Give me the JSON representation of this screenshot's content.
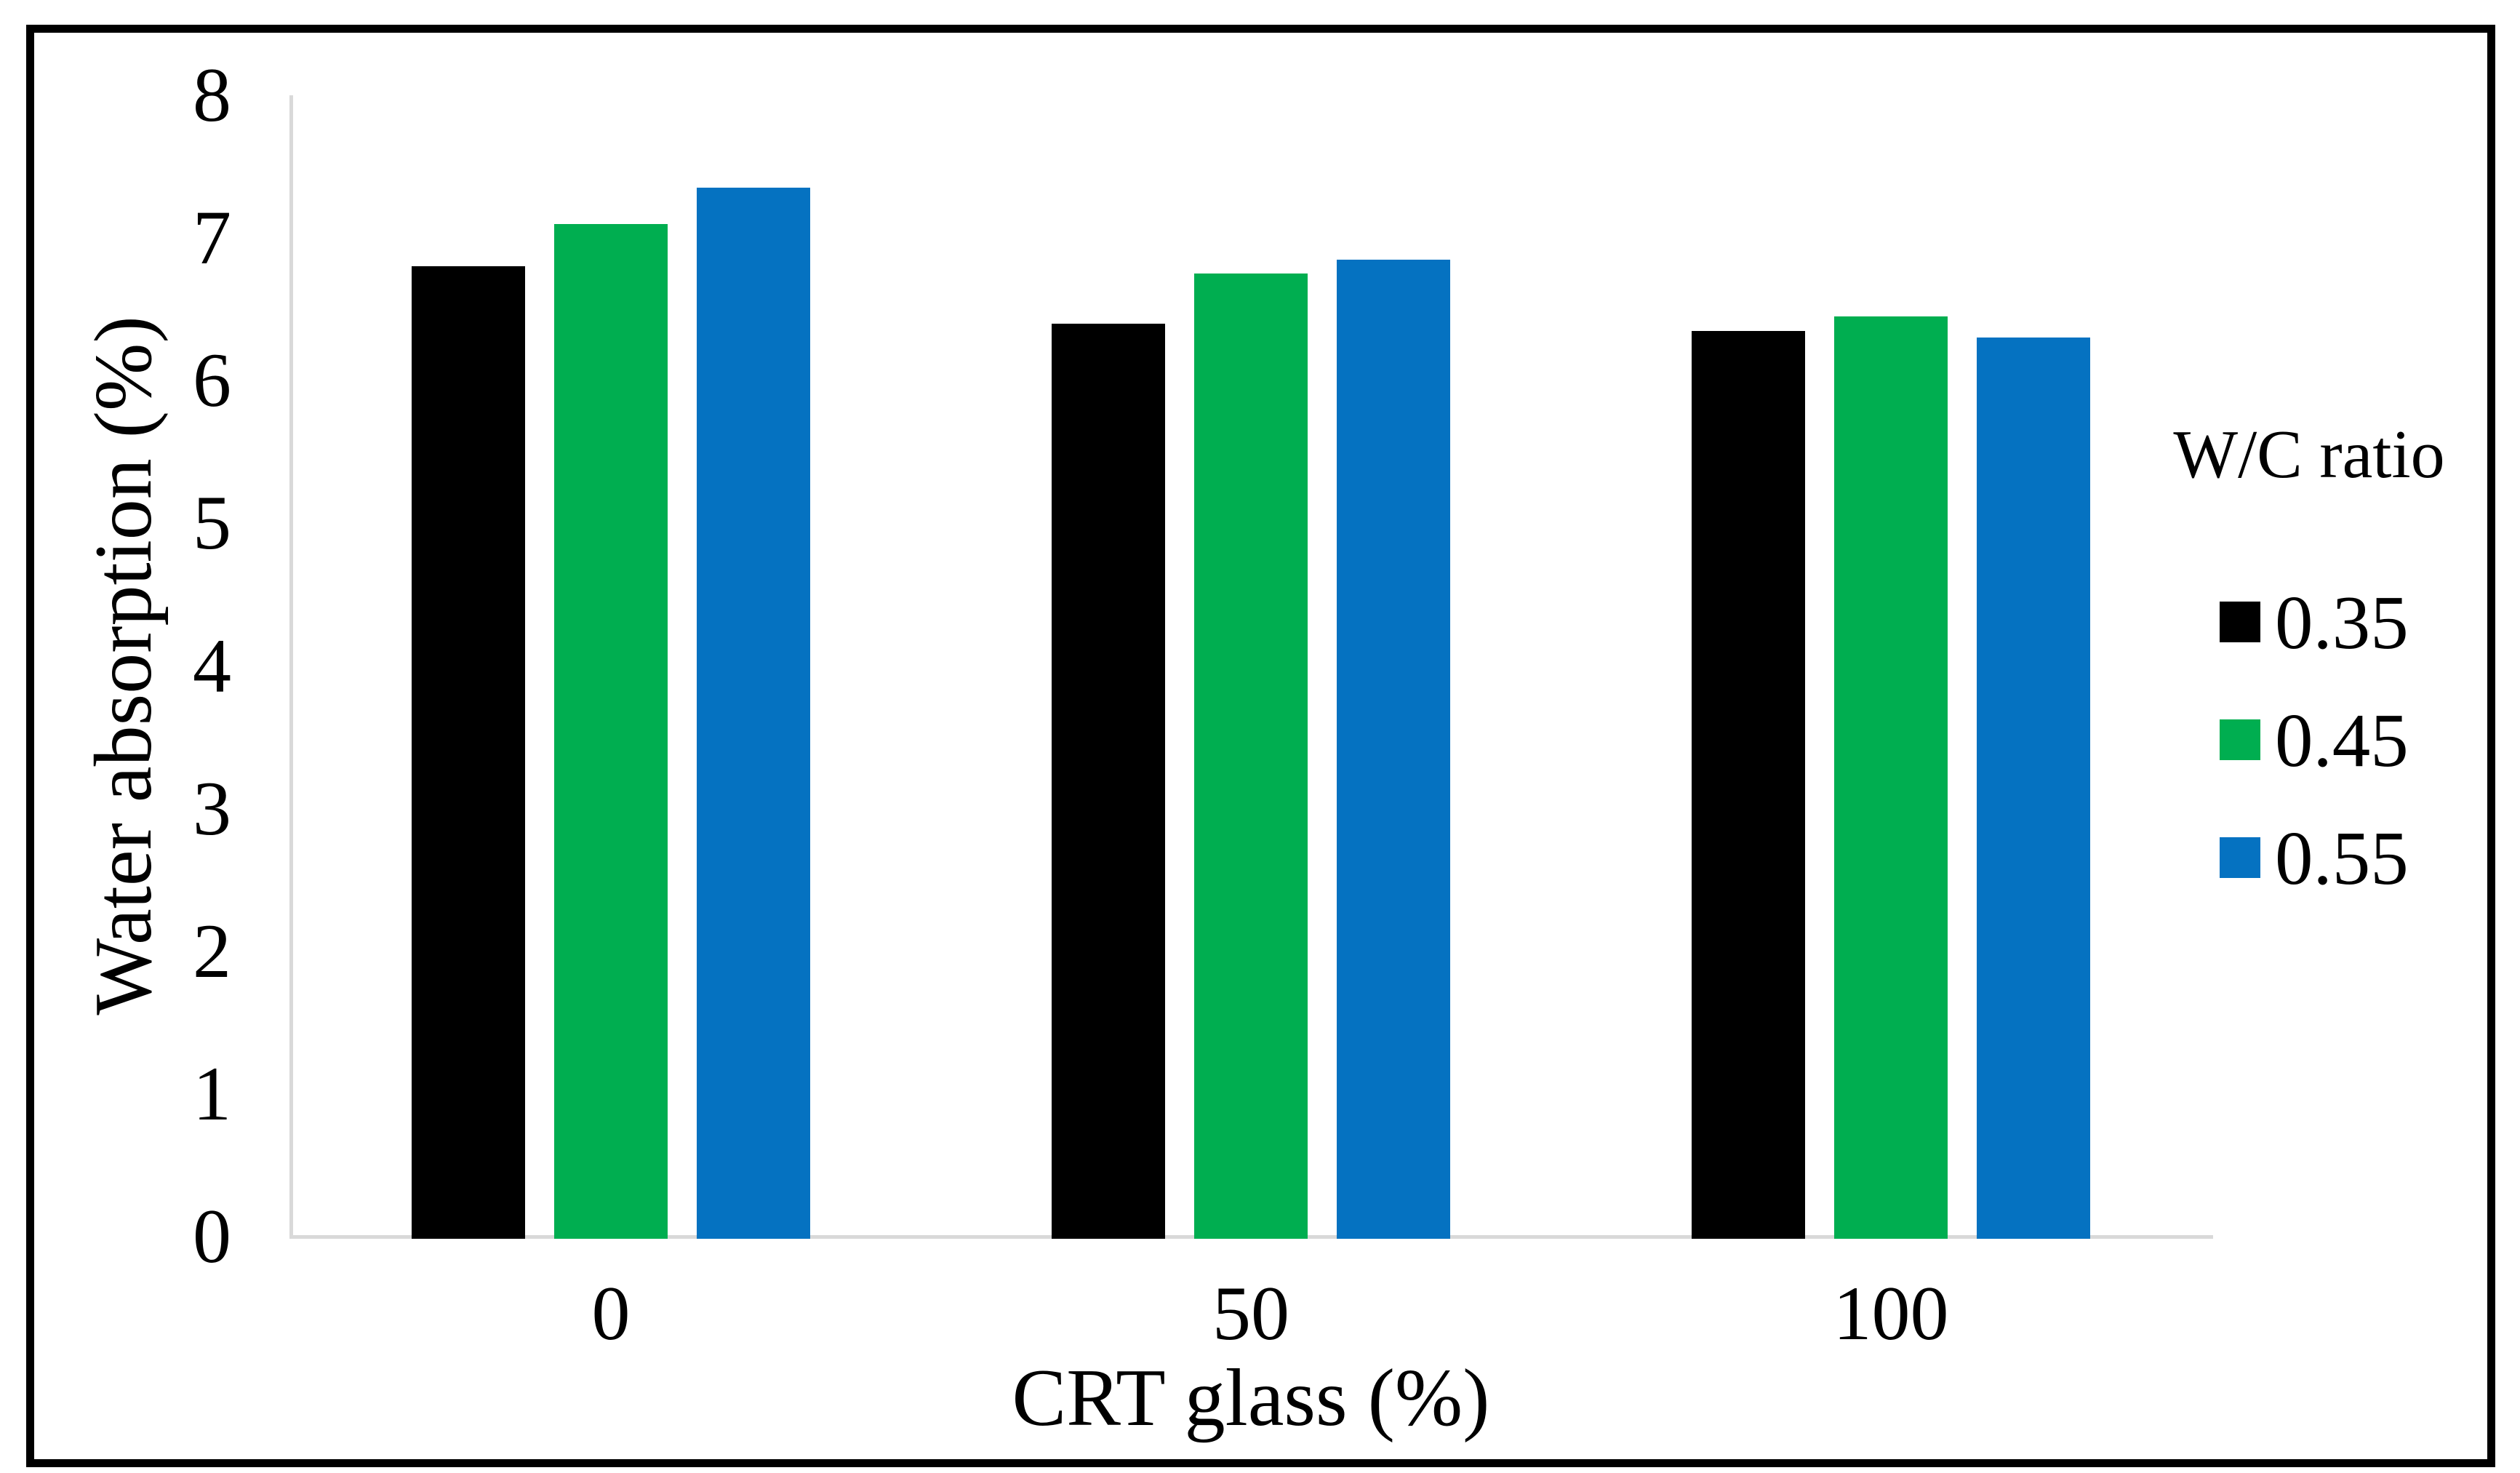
{
  "chart_data": {
    "type": "bar",
    "title": "",
    "categories": [
      "0",
      "50",
      "100"
    ],
    "series": [
      {
        "name": "0.35",
        "color": "#000000",
        "values": [
          6.8,
          6.4,
          6.35
        ]
      },
      {
        "name": "0.45",
        "color": "#00AE50",
        "values": [
          7.1,
          6.75,
          6.45
        ]
      },
      {
        "name": "0.55",
        "color": "#0572C1",
        "values": [
          7.35,
          6.85,
          6.3
        ]
      }
    ],
    "xlabel": "CRT glass (%)",
    "ylabel": "Water absorption (%)",
    "ylim": [
      0,
      8
    ],
    "yticks": [
      "0",
      "1",
      "2",
      "3",
      "4",
      "5",
      "6",
      "7",
      "8"
    ],
    "legend_title": "W/C ratio",
    "legend_position": "right",
    "grid": false,
    "axis_color": "#D9D9D9",
    "frame_color": "#000000",
    "background_color": "#ffffff"
  }
}
